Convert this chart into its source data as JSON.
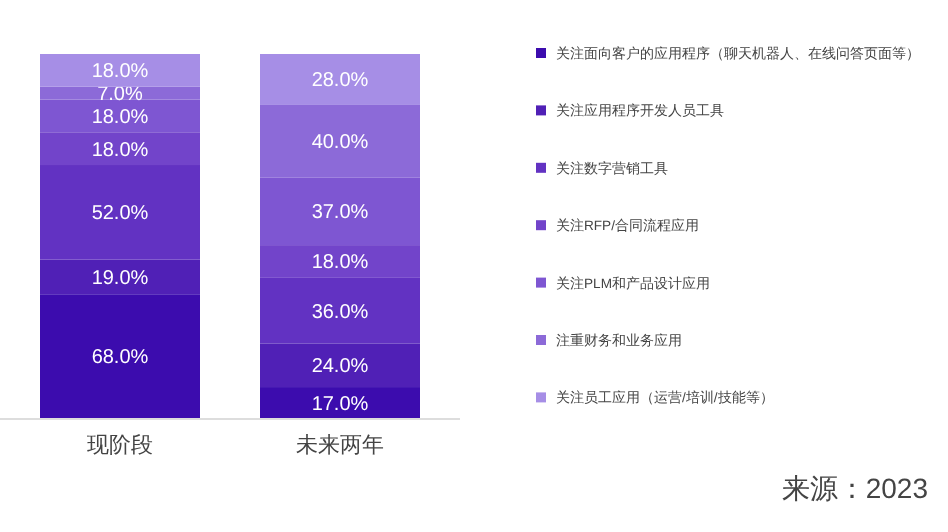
{
  "chart_data": {
    "type": "bar",
    "stacked": true,
    "legend": "right",
    "categories": [
      "现阶段",
      "未来两年"
    ],
    "series": [
      {
        "name": "关注面向客户的应用程序（聊天机器人、在线问答页面等）",
        "color": "#3c0cae",
        "values": [
          68.0,
          17.0
        ],
        "value_labels": [
          "68.0%",
          "17.0%"
        ]
      },
      {
        "name": "关注应用程序开发人员工具",
        "color": "#5020b6",
        "values": [
          19.0,
          24.0
        ],
        "value_labels": [
          "19.0%",
          "24.0%"
        ]
      },
      {
        "name": "关注数字营销工具",
        "color": "#6232c2",
        "values": [
          52.0,
          36.0
        ],
        "value_labels": [
          "52.0%",
          "36.0%"
        ]
      },
      {
        "name": "关注RFP/合同流程应用",
        "color": "#7244ca",
        "values": [
          18.0,
          18.0
        ],
        "value_labels": [
          "18.0%",
          "18.0%"
        ]
      },
      {
        "name": "关注PLM和产品设计应用",
        "color": "#7e56d2",
        "values": [
          18.0,
          37.0
        ],
        "value_labels": [
          "18.0%",
          "37.0%"
        ]
      },
      {
        "name": "注重财务和业务应用",
        "color": "#8c6ad8",
        "values": [
          7.0,
          40.0
        ],
        "value_labels": [
          "7.0%",
          "40.0%"
        ]
      },
      {
        "name": "关注员工应用（运营/培训/技能等）",
        "color": "#a68ee6",
        "values": [
          18.0,
          28.0
        ],
        "value_labels": [
          "18.0%",
          "28.0%"
        ]
      }
    ],
    "annotations": [
      "来源：2023"
    ]
  }
}
